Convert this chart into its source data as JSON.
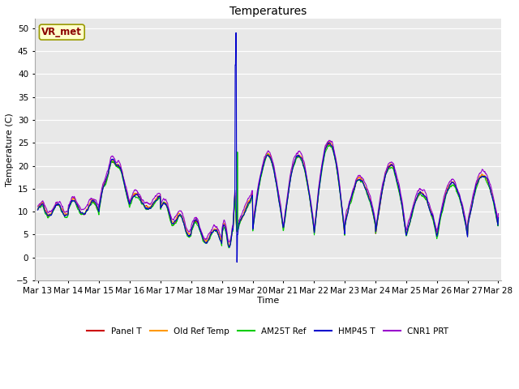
{
  "title": "Temperatures",
  "xlabel": "Time",
  "ylabel": "Temperature (C)",
  "ylim": [
    -5,
    52
  ],
  "yticks": [
    -5,
    0,
    5,
    10,
    15,
    20,
    25,
    30,
    35,
    40,
    45,
    50
  ],
  "plot_bg_color": "#e8e8e8",
  "fig_bg_color": "#ffffff",
  "annotation_text": "VR_met",
  "annotation_facecolor": "#ffffcc",
  "annotation_edgecolor": "#999900",
  "series_colors": {
    "Panel T": "#cc0000",
    "Old Ref Temp": "#ff9900",
    "AM25T Ref": "#00cc00",
    "HMP45 T": "#0000cc",
    "CNR1 PRT": "#9900cc"
  },
  "xtick_labels": [
    "Mar 13",
    "Mar 14",
    "Mar 15",
    "Mar 16",
    "Mar 17",
    "Mar 18",
    "Mar 19",
    "Mar 20",
    "Mar 21",
    "Mar 22",
    "Mar 23",
    "Mar 24",
    "Mar 25",
    "Mar 26",
    "Mar 27",
    "Mar 28"
  ],
  "lw": 0.8,
  "n_points": 1440,
  "seed": 12
}
